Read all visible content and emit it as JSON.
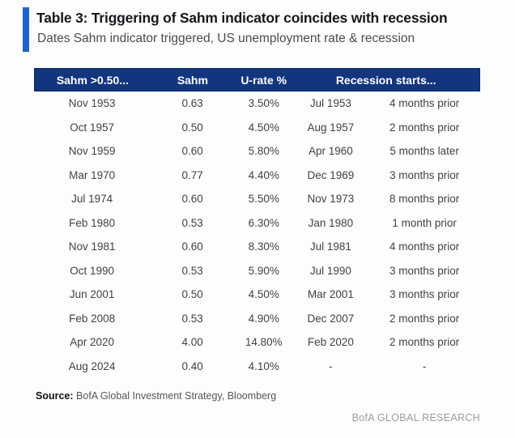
{
  "title": "Table 3: Triggering of Sahm indicator coincides with recession",
  "subtitle": "Dates Sahm indicator triggered, US unemployment rate & recession",
  "header_labels": [
    "Sahm >0.50...",
    "Sahm",
    "U-rate %",
    "Recession starts..."
  ],
  "chart_data": {
    "type": "table",
    "title": "Table 3: Triggering of Sahm indicator coincides with recession",
    "subtitle": "Dates Sahm indicator triggered, US unemployment rate & recession",
    "columns": [
      "Sahm >0.50...",
      "Sahm",
      "U-rate %",
      "Recession starts... (date)",
      "Recession starts... (timing)"
    ],
    "rows": [
      [
        "Nov 1953",
        "0.63",
        "3.50%",
        "Jul 1953",
        "4 months prior"
      ],
      [
        "Oct 1957",
        "0.50",
        "4.50%",
        "Aug 1957",
        "2 months prior"
      ],
      [
        "Nov 1959",
        "0.60",
        "5.80%",
        "Apr 1960",
        "5 months later"
      ],
      [
        "Mar 1970",
        "0.77",
        "4.40%",
        "Dec 1969",
        "3 months prior"
      ],
      [
        "Jul 1974",
        "0.60",
        "5.50%",
        "Nov 1973",
        "8 months prior"
      ],
      [
        "Feb 1980",
        "0.53",
        "6.30%",
        "Jan 1980",
        "1 month prior"
      ],
      [
        "Nov 1981",
        "0.60",
        "8.30%",
        "Jul 1981",
        "4 months prior"
      ],
      [
        "Oct 1990",
        "0.53",
        "5.90%",
        "Jul 1990",
        "3 months prior"
      ],
      [
        "Jun 2001",
        "0.50",
        "4.50%",
        "Mar 2001",
        "3 months prior"
      ],
      [
        "Feb 2008",
        "0.53",
        "4.90%",
        "Dec 2007",
        "2 months prior"
      ],
      [
        "Apr 2020",
        "4.00",
        "14.80%",
        "Feb 2020",
        "2 months prior"
      ],
      [
        "Aug 2024",
        "0.40",
        "4.10%",
        "-",
        "-"
      ]
    ]
  },
  "footer": {
    "source_label": "Source:",
    "source_text": "BofA Global Investment Strategy, Bloomberg",
    "branding": "BofA GLOBAL RESEARCH"
  },
  "colors": {
    "header_bg": "#13357e",
    "accent_bar": "#1f64c8"
  }
}
